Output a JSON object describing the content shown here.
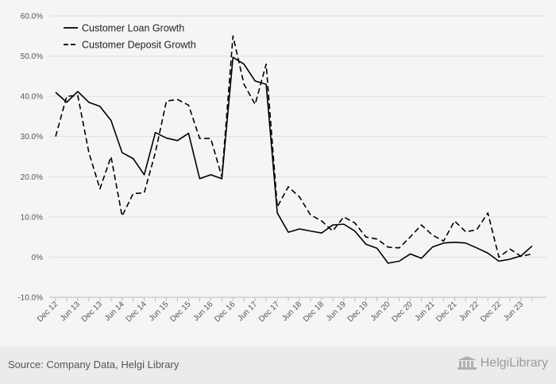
{
  "chart_data": {
    "type": "line",
    "title": "",
    "xlabel": "",
    "ylabel": "",
    "y_unit": "%",
    "ylim": [
      -10,
      60
    ],
    "y_ticks": [
      -10,
      0,
      10,
      20,
      30,
      40,
      50,
      60
    ],
    "y_tick_labels": [
      "-10.0%",
      "0%",
      "10.0%",
      "20.0%",
      "30.0%",
      "40.0%",
      "50.0%",
      "60.0%"
    ],
    "grid": "horizontal",
    "legend_position": "top-left",
    "x_labels": [
      "Dec 12",
      "Jun 13",
      "Dec 13",
      "Jun 14",
      "Dec 14",
      "Jun 15",
      "Dec 15",
      "Jun 16",
      "Dec 16",
      "Jun 17",
      "Dec 17",
      "Jun 18",
      "Dec 18",
      "Jun 19",
      "Dec 19",
      "Jun 20",
      "Dec 20",
      "Jun 21",
      "Dec 21",
      "Jun 22",
      "Dec 22",
      "Jun 23"
    ],
    "x": [
      "Dec 12",
      "Mar 13",
      "Jun 13",
      "Sep 13",
      "Dec 13",
      "Mar 14",
      "Jun 14",
      "Sep 14",
      "Dec 14",
      "Mar 15",
      "Jun 15",
      "Sep 15",
      "Dec 15",
      "Mar 16",
      "Jun 16",
      "Sep 16",
      "Dec 16",
      "Mar 17",
      "Jun 17",
      "Sep 17",
      "Dec 17",
      "Mar 18",
      "Jun 18",
      "Sep 18",
      "Dec 18",
      "Mar 19",
      "Jun 19",
      "Sep 19",
      "Dec 19",
      "Mar 20",
      "Jun 20",
      "Sep 20",
      "Dec 20",
      "Mar 21",
      "Jun 21",
      "Sep 21",
      "Dec 21",
      "Mar 22",
      "Jun 22",
      "Sep 22",
      "Dec 22",
      "Mar 23",
      "Jun 23",
      "Sep 23"
    ],
    "series": [
      {
        "name": "Customer Loan Growth",
        "style": "solid",
        "color": "#000000",
        "values": [
          41.0,
          38.5,
          41.2,
          38.5,
          37.5,
          34.0,
          26.0,
          24.5,
          20.5,
          31.0,
          29.6,
          29.0,
          30.8,
          19.5,
          20.5,
          19.5,
          49.7,
          48.0,
          43.8,
          43.0,
          11.0,
          6.2,
          7.0,
          6.5,
          6.0,
          8.0,
          8.2,
          6.5,
          3.2,
          2.2,
          -1.5,
          -1.0,
          0.8,
          -0.3,
          2.5,
          3.5,
          3.7,
          3.5,
          2.3,
          1.0,
          -1.0,
          -0.5,
          0.3,
          2.8
        ]
      },
      {
        "name": "Customer Deposit Growth",
        "style": "dashed",
        "color": "#000000",
        "values": [
          30.0,
          40.0,
          40.2,
          26.0,
          17.0,
          25.0,
          10.2,
          15.8,
          16.0,
          26.0,
          38.8,
          39.2,
          37.8,
          29.5,
          29.5,
          20.0,
          55.0,
          43.0,
          38.0,
          48.0,
          12.5,
          17.5,
          15.0,
          10.5,
          9.0,
          6.5,
          10.0,
          8.5,
          5.0,
          4.5,
          2.5,
          2.3,
          5.0,
          8.0,
          5.5,
          4.0,
          9.0,
          6.3,
          6.8,
          11.0,
          0.0,
          2.0,
          0.2,
          0.8
        ]
      }
    ]
  },
  "footer": {
    "source": "Source: Company Data, Helgi Library",
    "brand": "HelgiLibrary",
    "brand_icon": "library-building-icon"
  }
}
